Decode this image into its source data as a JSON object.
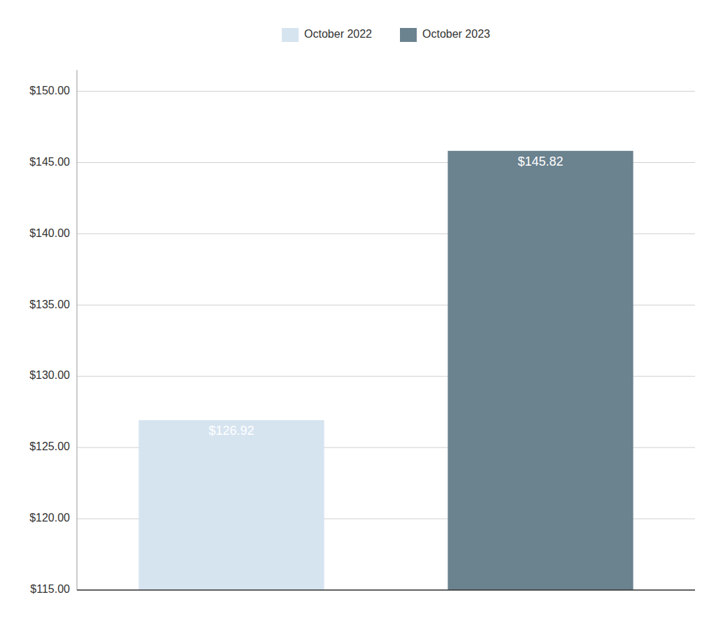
{
  "chart_data": {
    "type": "bar",
    "categories": [
      "October 2022",
      "October 2023"
    ],
    "values": [
      126.92,
      145.82
    ],
    "value_labels": [
      "$126.92",
      "$145.82"
    ],
    "colors": [
      "#d6e4f0",
      "#6b828f"
    ],
    "ylim": [
      115.0,
      151.5
    ],
    "yticks": [
      {
        "value": 115.0,
        "label": "$115.00"
      },
      {
        "value": 120.0,
        "label": "$120.00"
      },
      {
        "value": 125.0,
        "label": "$125.00"
      },
      {
        "value": 130.0,
        "label": "$130.00"
      },
      {
        "value": 135.0,
        "label": "$135.00"
      },
      {
        "value": 140.0,
        "label": "$140.00"
      },
      {
        "value": 145.0,
        "label": "$145.00"
      },
      {
        "value": 150.0,
        "label": "$150.00"
      }
    ],
    "grid": true,
    "legend": "top",
    "data_labels": true,
    "tick_labels": "y"
  }
}
